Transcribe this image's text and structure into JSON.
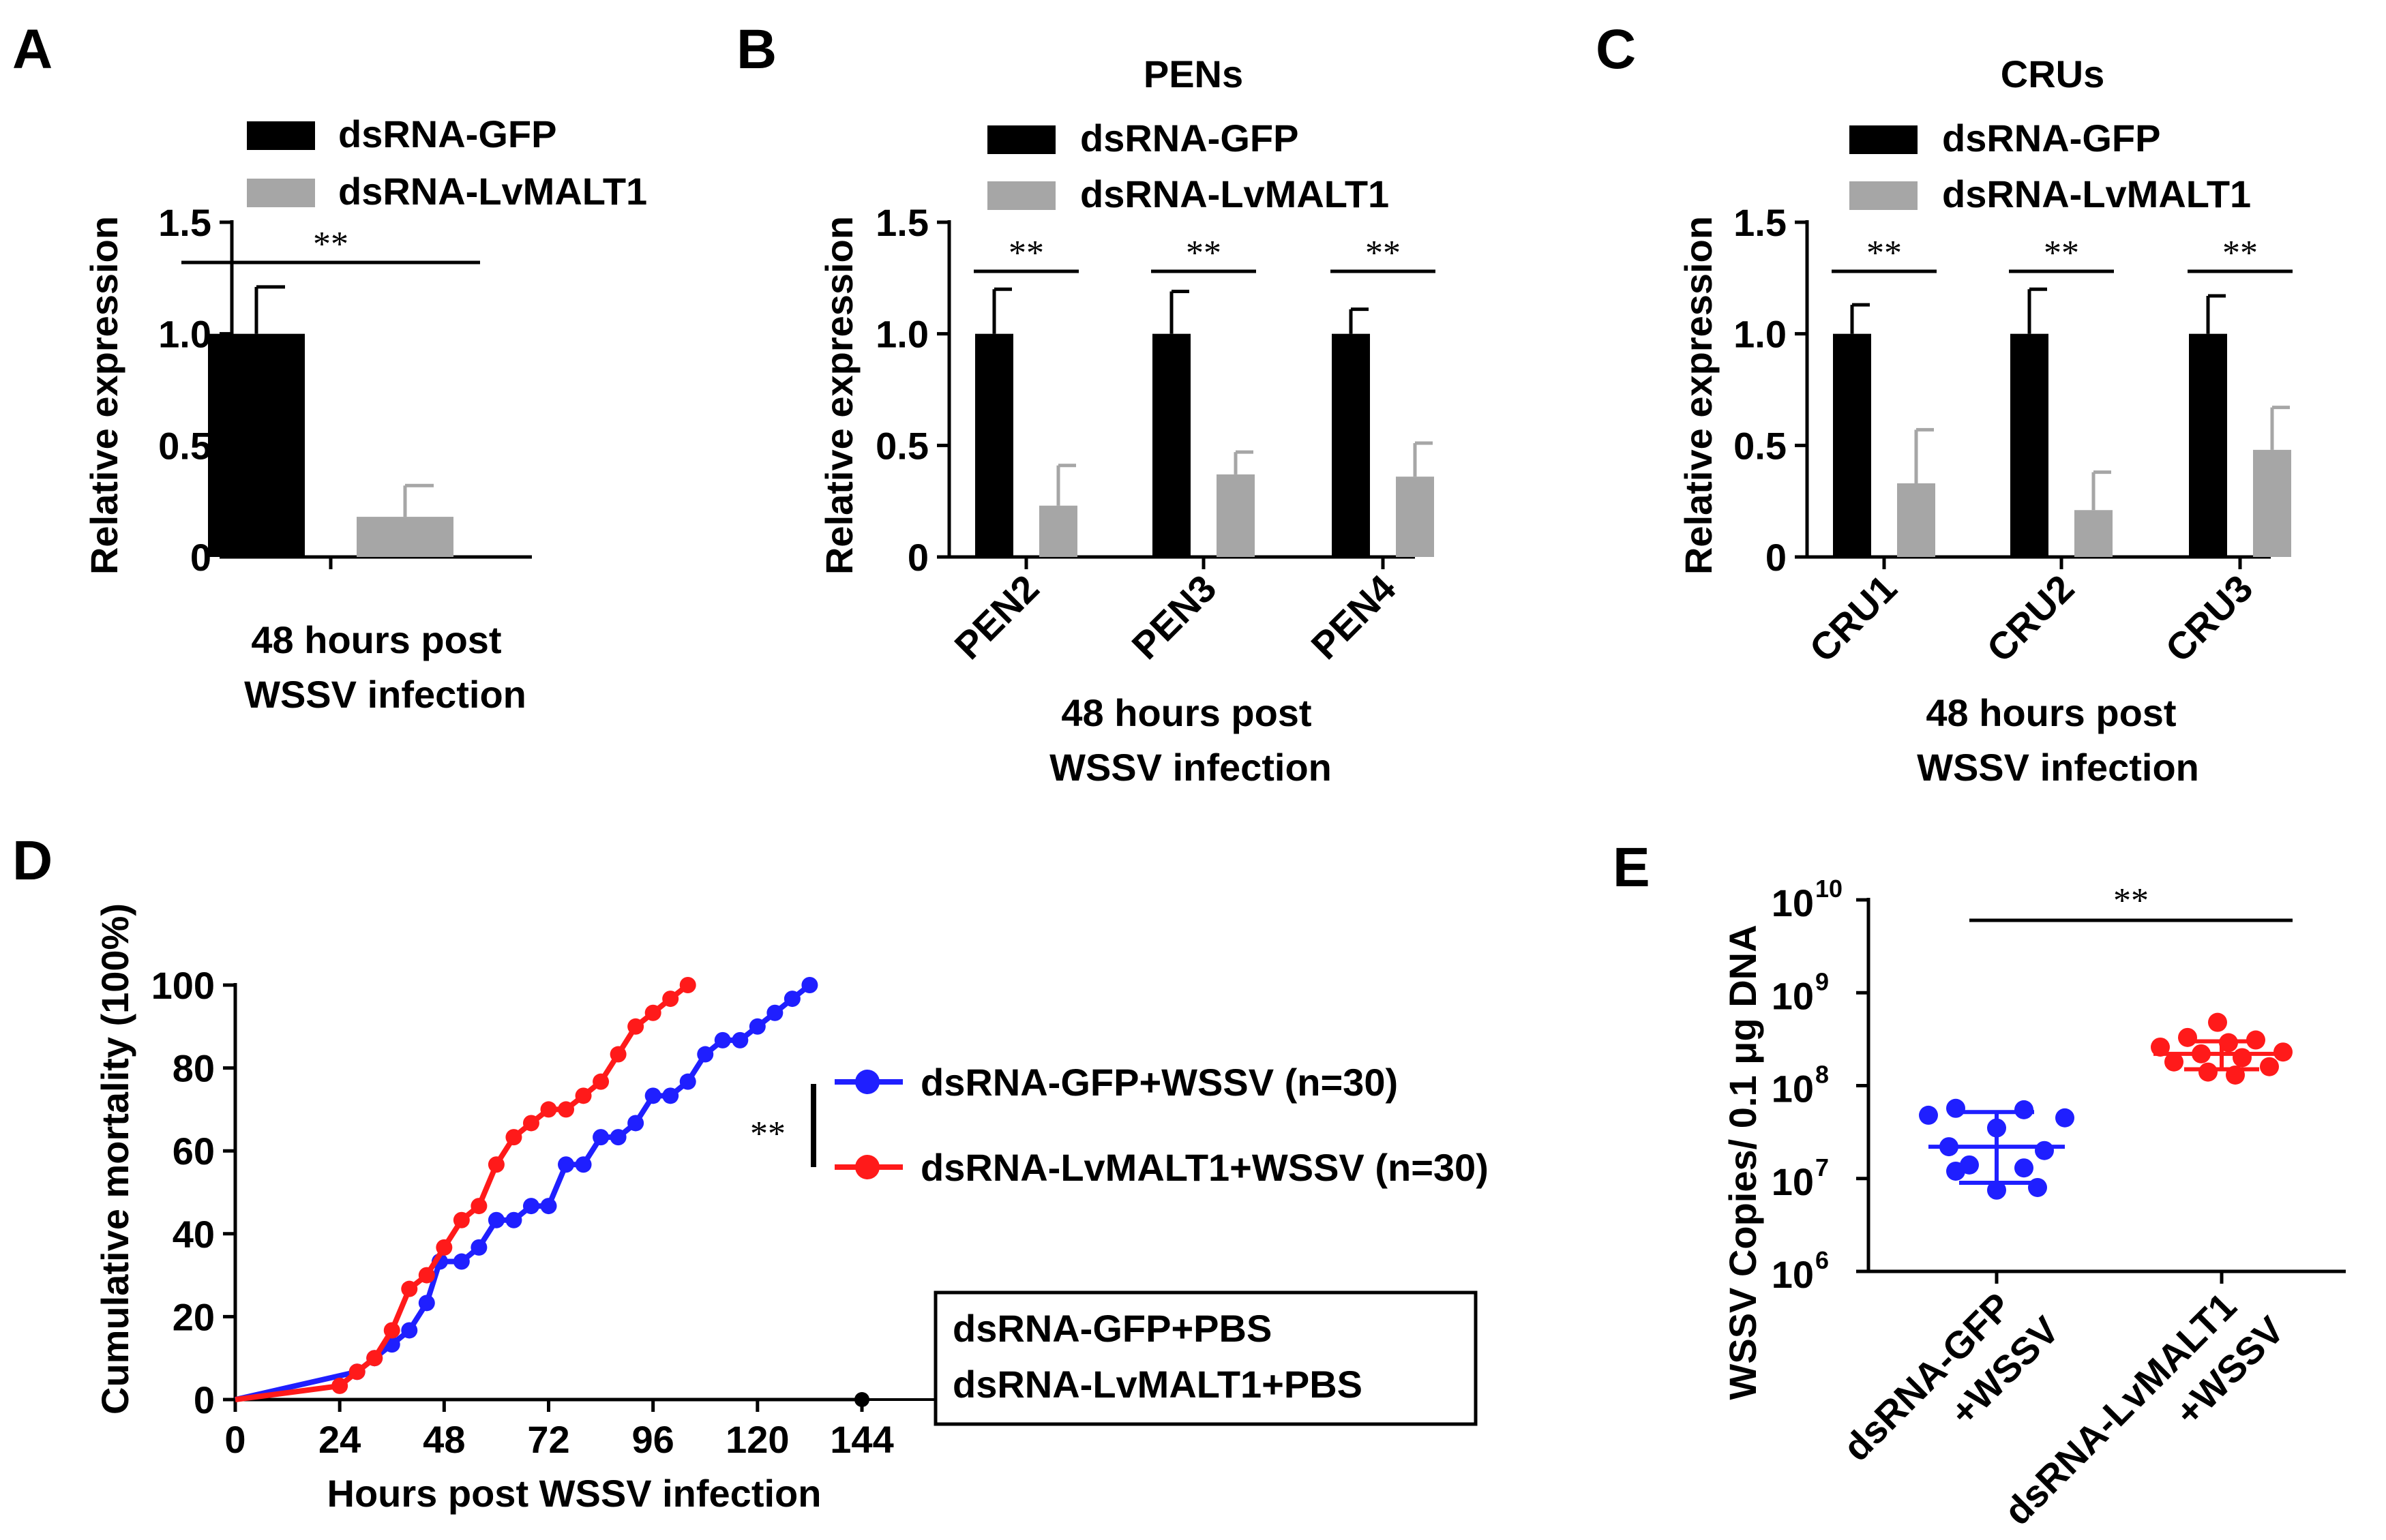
{
  "colors": {
    "black": "#000000",
    "gray": "#a6a6a6",
    "blue": "#1f1fff",
    "red": "#ff1a1a"
  },
  "chart_data": [
    {
      "panel": "A",
      "type": "bar",
      "ylabel": "Relative expression",
      "xlabel_line1": "48 hours post",
      "xlabel_line2": "WSSV infection",
      "ylim": [
        0,
        1.5
      ],
      "yticks": [
        "0",
        "0.5",
        "1.0",
        "1.5"
      ],
      "legend": [
        "dsRNA-GFP",
        "dsRNA-LvMALT1"
      ],
      "groups": [
        {
          "label": "",
          "values": [
            1.0,
            0.18
          ],
          "errors": [
            0.21,
            0.14
          ],
          "sig": "**"
        }
      ]
    },
    {
      "panel": "B",
      "type": "bar",
      "title": "PENs",
      "ylabel": "Relative expression",
      "xlabel_line1": "48 hours post",
      "xlabel_line2": "WSSV infection",
      "ylim": [
        0,
        1.5
      ],
      "yticks": [
        "0",
        "0.5",
        "1.0",
        "1.5"
      ],
      "legend": [
        "dsRNA-GFP",
        "dsRNA-LvMALT1"
      ],
      "groups": [
        {
          "label": "PEN2",
          "values": [
            1.0,
            0.23
          ],
          "errors": [
            0.2,
            0.18
          ],
          "sig": "**"
        },
        {
          "label": "PEN3",
          "values": [
            1.0,
            0.37
          ],
          "errors": [
            0.19,
            0.1
          ],
          "sig": "**"
        },
        {
          "label": "PEN4",
          "values": [
            1.0,
            0.36
          ],
          "errors": [
            0.11,
            0.15
          ],
          "sig": "**"
        }
      ]
    },
    {
      "panel": "C",
      "type": "bar",
      "title": "CRUs",
      "ylabel": "Relative expression",
      "xlabel_line1": "48 hours post",
      "xlabel_line2": "WSSV infection",
      "ylim": [
        0,
        1.5
      ],
      "yticks": [
        "0",
        "0.5",
        "1.0",
        "1.5"
      ],
      "legend": [
        "dsRNA-GFP",
        "dsRNA-LvMALT1"
      ],
      "groups": [
        {
          "label": "CRU1",
          "values": [
            1.0,
            0.33
          ],
          "errors": [
            0.13,
            0.24
          ],
          "sig": "**"
        },
        {
          "label": "CRU2",
          "values": [
            1.0,
            0.21
          ],
          "errors": [
            0.2,
            0.17
          ],
          "sig": "**"
        },
        {
          "label": "CRU3",
          "values": [
            1.0,
            0.48
          ],
          "errors": [
            0.17,
            0.19
          ],
          "sig": "**"
        }
      ]
    },
    {
      "panel": "D",
      "type": "line",
      "ylabel": "Cumulative mortality (100%)",
      "xlabel": "Hours post WSSV infection",
      "xlim": [
        0,
        144
      ],
      "ylim": [
        0,
        100
      ],
      "xticks": [
        "0",
        "24",
        "48",
        "72",
        "96",
        "120",
        "144"
      ],
      "yticks": [
        "0",
        "20",
        "40",
        "60",
        "80",
        "100"
      ],
      "sig": "**",
      "series": [
        {
          "name": "dsRNA-GFP+WSSV (n=30)",
          "color": "blue",
          "points": [
            [
              0,
              0
            ],
            [
              28,
              6.7
            ],
            [
              32,
              10
            ],
            [
              36,
              13.3
            ],
            [
              40,
              16.7
            ],
            [
              44,
              23.3
            ],
            [
              47,
              33.3
            ],
            [
              52,
              33.3
            ],
            [
              56,
              36.7
            ],
            [
              60,
              43.3
            ],
            [
              64,
              43.3
            ],
            [
              68,
              46.7
            ],
            [
              72,
              46.7
            ],
            [
              76,
              56.7
            ],
            [
              80,
              56.7
            ],
            [
              84,
              63.3
            ],
            [
              88,
              63.3
            ],
            [
              92,
              66.7
            ],
            [
              96,
              73.3
            ],
            [
              100,
              73.3
            ],
            [
              104,
              76.7
            ],
            [
              108,
              83.3
            ],
            [
              112,
              86.7
            ],
            [
              116,
              86.7
            ],
            [
              120,
              90
            ],
            [
              124,
              93.3
            ],
            [
              128,
              96.7
            ],
            [
              132,
              100
            ]
          ]
        },
        {
          "name": "dsRNA-LvMALT1+WSSV (n=30)",
          "color": "red",
          "points": [
            [
              0,
              0
            ],
            [
              24,
              3.3
            ],
            [
              28,
              6.7
            ],
            [
              32,
              10
            ],
            [
              36,
              16.7
            ],
            [
              40,
              26.7
            ],
            [
              44,
              30
            ],
            [
              48,
              36.7
            ],
            [
              52,
              43.3
            ],
            [
              56,
              46.7
            ],
            [
              60,
              56.7
            ],
            [
              64,
              63.3
            ],
            [
              68,
              66.7
            ],
            [
              72,
              70
            ],
            [
              76,
              70
            ],
            [
              80,
              73.3
            ],
            [
              84,
              76.7
            ],
            [
              88,
              83.3
            ],
            [
              92,
              90
            ],
            [
              96,
              93.3
            ],
            [
              100,
              96.7
            ],
            [
              104,
              100
            ]
          ]
        }
      ],
      "pbs_box": [
        "dsRNA-GFP+PBS",
        "dsRNA-LvMALT1+PBS"
      ]
    },
    {
      "panel": "E",
      "type": "scatter",
      "ylabel": "WSSV Copies/ 0.1 μg DNA",
      "yscale": "log",
      "ylim_exp": [
        6,
        10
      ],
      "yticks": [
        {
          "base": "10",
          "exp": "6"
        },
        {
          "base": "10",
          "exp": "7"
        },
        {
          "base": "10",
          "exp": "8"
        },
        {
          "base": "10",
          "exp": "9"
        },
        {
          "base": "10",
          "exp": "10"
        }
      ],
      "sig": "**",
      "groups": [
        {
          "label_line1": "dsRNA-GFP",
          "label_line2": "+WSSV",
          "color": "blue",
          "mean": 22000000,
          "sd_low": 9000000,
          "sd_high": 52000000,
          "values": [
            57000000,
            55000000,
            45000000,
            48000000,
            35000000,
            22000000,
            20000000,
            14000000,
            13000000,
            12000000,
            8000000,
            7500000
          ]
        },
        {
          "label_line1": "dsRNA-LvMALT1",
          "label_line2": "+WSSV",
          "color": "red",
          "mean": 220000000,
          "sd_low": 150000000,
          "sd_high": 300000000,
          "values": [
            480000000,
            330000000,
            310000000,
            290000000,
            260000000,
            230000000,
            220000000,
            200000000,
            180000000,
            160000000,
            140000000,
            130000000
          ]
        }
      ]
    }
  ]
}
